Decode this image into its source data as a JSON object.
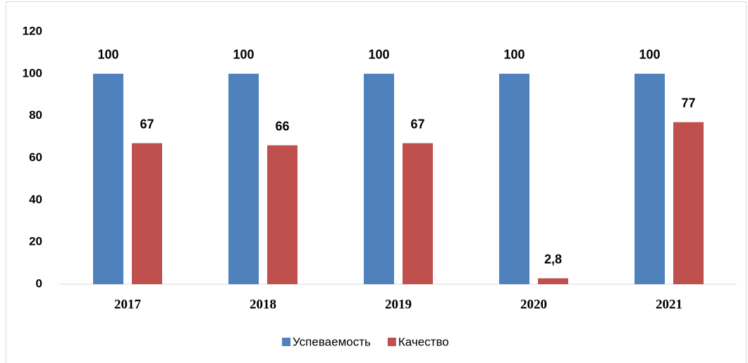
{
  "chart_data": {
    "type": "bar",
    "categories": [
      "2017",
      "2018",
      "2019",
      "2020",
      "2021"
    ],
    "series": [
      {
        "name": "Успеваемость",
        "color": "#4f81bd",
        "values": [
          100,
          100,
          100,
          100,
          100
        ]
      },
      {
        "name": "Качество",
        "color": "#c0504d",
        "values": [
          67,
          66,
          67,
          2.8,
          77
        ],
        "value_labels": [
          "67",
          "66",
          "67",
          "2,8",
          "77"
        ]
      }
    ],
    "ylim": [
      0,
      120
    ],
    "yticks": [
      0,
      20,
      40,
      60,
      80,
      100,
      120
    ],
    "grid": false,
    "legend": "bottom"
  }
}
